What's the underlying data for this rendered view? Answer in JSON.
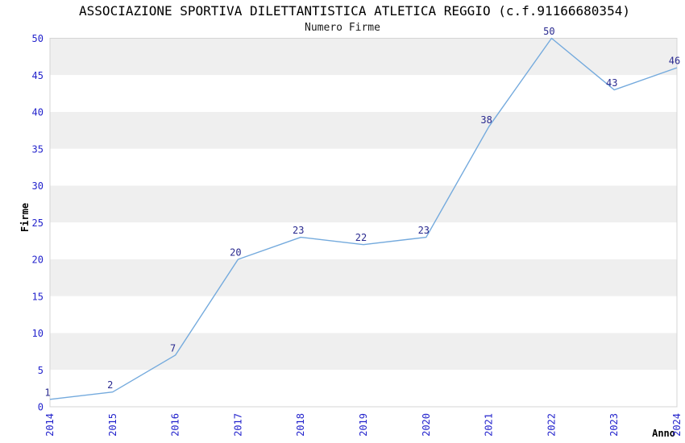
{
  "chart_data": {
    "type": "line",
    "title": "ASSOCIAZIONE SPORTIVA DILETTANTISTICA ATLETICA REGGIO (c.f.91166680354)",
    "subtitle": "Numero Firme",
    "xlabel": "Anno",
    "ylabel": "Firme",
    "categories": [
      "2014",
      "2015",
      "2016",
      "2017",
      "2018",
      "2019",
      "2020",
      "2021",
      "2022",
      "2023",
      "2024"
    ],
    "values": [
      1,
      2,
      7,
      20,
      23,
      22,
      23,
      38,
      50,
      43,
      46
    ],
    "ylim": [
      0,
      50
    ],
    "ytick_step": 5,
    "legend_position": "none",
    "grid": "horizontal-bands-alternating",
    "data_labels_visible": true,
    "colors": {
      "line": "#74aadd",
      "band_gray": "#efefef",
      "band_white": "#ffffff",
      "frame": "#d4d4d4",
      "tick_label": "#2323cc",
      "data_label": "#29298f",
      "title_text": "#000000"
    }
  }
}
